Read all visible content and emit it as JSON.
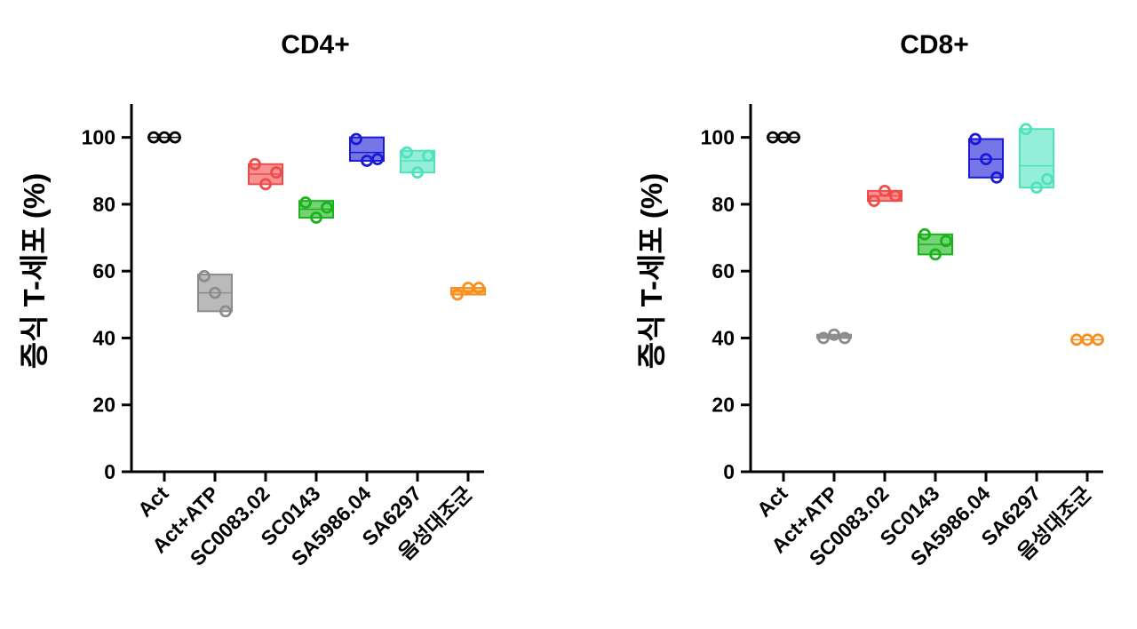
{
  "chart_data": [
    {
      "type": "floating-bar-scatter",
      "title": "CD4+",
      "ylabel": "증식 T-세포 (%)",
      "ylim": [
        0,
        110
      ],
      "yticks": [
        0,
        20,
        40,
        60,
        80,
        100
      ],
      "categories": [
        "Act",
        "Act+ATP",
        "SC0083.02",
        "SC0143",
        "SA5986.04",
        "SA6297",
        "음성대조군"
      ],
      "colors": [
        "#000000",
        "#8c8c8c",
        "#ef4b4b",
        "#19b419",
        "#1a1ad6",
        "#4fe3bd",
        "#f7901e"
      ],
      "series": [
        {
          "category": "Act",
          "points": [
            100,
            100,
            100
          ],
          "min": 100,
          "max": 100,
          "mean": 100
        },
        {
          "category": "Act+ATP",
          "points": [
            58.5,
            53.5,
            48
          ],
          "min": 48,
          "max": 59,
          "mean": 53.5
        },
        {
          "category": "SC0083.02",
          "points": [
            92,
            86,
            89.5
          ],
          "min": 86,
          "max": 92,
          "mean": 89
        },
        {
          "category": "SC0143",
          "points": [
            80.5,
            76,
            79
          ],
          "min": 76,
          "max": 81,
          "mean": 78.5
        },
        {
          "category": "SA5986.04",
          "points": [
            99.5,
            93,
            93.5
          ],
          "min": 93,
          "max": 100,
          "mean": 95.5
        },
        {
          "category": "SA6297",
          "points": [
            95.5,
            89.5,
            94.5
          ],
          "min": 89.5,
          "max": 96,
          "mean": 93
        },
        {
          "category": "음성대조군",
          "points": [
            53,
            55,
            55
          ],
          "min": 53,
          "max": 55,
          "mean": 54
        }
      ]
    },
    {
      "type": "floating-bar-scatter",
      "title": "CD8+",
      "ylabel": "증식 T-세포 (%)",
      "ylim": [
        0,
        110
      ],
      "yticks": [
        0,
        20,
        40,
        60,
        80,
        100
      ],
      "categories": [
        "Act",
        "Act+ATP",
        "SC0083.02",
        "SC0143",
        "SA5986.04",
        "SA6297",
        "음성대조군"
      ],
      "colors": [
        "#000000",
        "#8c8c8c",
        "#ef4b4b",
        "#19b419",
        "#1a1ad6",
        "#4fe3bd",
        "#f7901e"
      ],
      "series": [
        {
          "category": "Act",
          "points": [
            100,
            100,
            100
          ],
          "min": 100,
          "max": 100,
          "mean": 100
        },
        {
          "category": "Act+ATP",
          "points": [
            40,
            41,
            40
          ],
          "min": 40,
          "max": 41,
          "mean": 40.5
        },
        {
          "category": "SC0083.02",
          "points": [
            81,
            84,
            82.5
          ],
          "min": 81,
          "max": 84,
          "mean": 82.5
        },
        {
          "category": "SC0143",
          "points": [
            71,
            65,
            69
          ],
          "min": 65,
          "max": 71,
          "mean": 68
        },
        {
          "category": "SA5986.04",
          "points": [
            99.5,
            93.5,
            88
          ],
          "min": 88,
          "max": 99.5,
          "mean": 93.5
        },
        {
          "category": "SA6297",
          "points": [
            102.5,
            85,
            87.5
          ],
          "min": 85,
          "max": 102.5,
          "mean": 91.5
        },
        {
          "category": "음성대조군",
          "points": [
            39.5,
            39.5,
            39.5
          ],
          "min": 39.5,
          "max": 39.5,
          "mean": 39.5
        }
      ]
    }
  ]
}
